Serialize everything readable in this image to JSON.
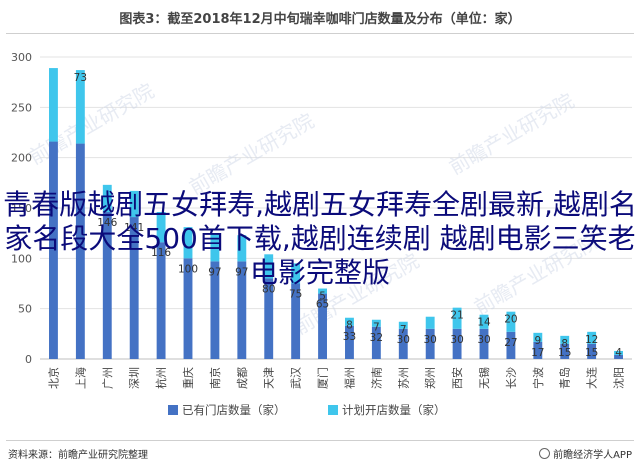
{
  "chart_data": {
    "type": "bar",
    "title": "图表3：截至2018年12月中旬瑞幸咖啡门店数量及分布（单位：家）",
    "categories": [
      "北京",
      "上海",
      "广州",
      "深圳",
      "杭州",
      "重庆",
      "南京",
      "成都",
      "天津",
      "武汉",
      "厦门",
      "福州",
      "济南",
      "苏州",
      "郑州",
      "西安",
      "无锡",
      "长沙",
      "宁波",
      "青岛",
      "大连",
      "沈阳"
    ],
    "series": [
      {
        "name": "已有门店数量（家）",
        "color": "#4472c4",
        "values": [
          216,
          214,
          146,
          141,
          116,
          100,
          97,
          97,
          80,
          75,
          65,
          33,
          32,
          30,
          30,
          30,
          30,
          27,
          17,
          15,
          15,
          4
        ]
      },
      {
        "name": "计划开店数量（家）",
        "color": "#3fc6ec",
        "values": [
          73,
          73,
          27,
          26,
          30,
          31,
          28,
          26,
          24,
          20,
          5,
          8,
          7,
          7,
          12,
          21,
          14,
          20,
          9,
          8,
          12,
          4
        ]
      }
    ],
    "labels_shown": [
      [
        null,
        null,
        146,
        141,
        116,
        100,
        97,
        97,
        80,
        75,
        65,
        33,
        32,
        30,
        30,
        30,
        30,
        27,
        17,
        15,
        15,
        4
      ],
      [
        null,
        73,
        null,
        null,
        null,
        null,
        null,
        null,
        null,
        null,
        5,
        8,
        7,
        7,
        null,
        21,
        14,
        20,
        9,
        8,
        12,
        null
      ]
    ],
    "ylim": [
      0,
      300
    ],
    "yticks": [
      0,
      50,
      100,
      150,
      200,
      250,
      300
    ],
    "grid": true,
    "legend": "bottom"
  },
  "overlay_text": "青春版越剧五女拜寿,越剧五女拜寿全剧最新,越剧名家名段大全500首下载,越剧连续剧 越剧电影三笑老电影完整版",
  "watermark_text": "前瞻产业研究院",
  "footer": {
    "source": "资料来源：前瞻产业研究院整理",
    "brand": "前瞻经济学人APP"
  }
}
